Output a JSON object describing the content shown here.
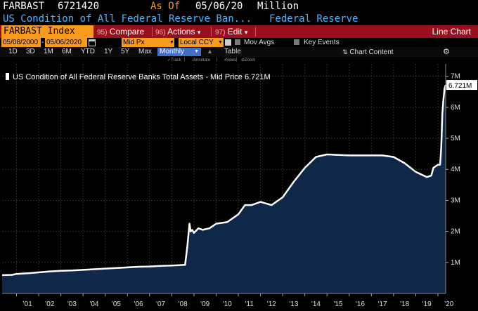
{
  "header": {
    "ticker": "FARBAST",
    "value": "6721420",
    "as_of_label": "As Of",
    "as_of_date": "05/06/20",
    "unit": "Million",
    "description": "US Condition of All Federal Reserve Ban...",
    "source": "Federal Reserve"
  },
  "toolbar": {
    "security": "FARBAST Index",
    "compare_num": "95)",
    "compare_label": "Compare",
    "actions_num": "96)",
    "actions_label": "Actions",
    "edit_num": "97)",
    "edit_label": "Edit",
    "dropdown_glyph": "▾",
    "chart_type": "Line Chart"
  },
  "options": {
    "start_date": "05/08/2000",
    "date_separator": "-",
    "end_date": "05/06/2020",
    "price_field": "Mid Px",
    "currency": "Local CCY",
    "mov_avgs_label": "Mov Avgs",
    "key_events_label": "Key Events"
  },
  "periods": {
    "items": [
      "1D",
      "3D",
      "1M",
      "6M",
      "YTD",
      "1Y",
      "5Y",
      "Max"
    ],
    "selected": "Monthly",
    "table_label": "Table",
    "chart_content_label": "Chart Content"
  },
  "tools": {
    "track": "Track",
    "annotate": "Annotate",
    "news": "News",
    "zoom": "Zoom"
  },
  "legend": {
    "label": "US Condition of All Federal Reserve Banks Total Assets - Mid Price",
    "last_value": "6.721M"
  },
  "colors": {
    "orange": "#f79a1e",
    "red_bar": "#9a0f1e",
    "blue_text": "#46b4ff",
    "area_fill": "#0f2748",
    "line": "#ffffff"
  },
  "chart_data": {
    "type": "area",
    "title": "",
    "xlabel": "",
    "ylabel": "",
    "xlim": [
      2000.35,
      2020.35
    ],
    "ylim": [
      0,
      7.4
    ],
    "y_unit": "M",
    "x_tick_labels": [
      "'01",
      "'02",
      "'03",
      "'04",
      "'05",
      "'06",
      "'07",
      "'08",
      "'09",
      "'10",
      "'11",
      "'12",
      "'13",
      "'14",
      "'15",
      "'16",
      "'17",
      "'18",
      "'19",
      "'20"
    ],
    "y_ticks": [
      1,
      2,
      3,
      4,
      5,
      6,
      7
    ],
    "y_tick_labels": [
      "1M",
      "2M",
      "3M",
      "4M",
      "5M",
      "6M",
      "7M"
    ],
    "last_value_label": "6.721M",
    "series": [
      {
        "name": "US Condition of All Federal Reserve Banks Total Assets - Mid Price",
        "x": [
          2000.35,
          2000.8,
          2001.0,
          2001.5,
          2002.0,
          2002.5,
          2003.0,
          2003.5,
          2004.0,
          2004.5,
          2005.0,
          2005.5,
          2006.0,
          2006.5,
          2007.0,
          2007.5,
          2008.0,
          2008.6,
          2008.7,
          2008.8,
          2008.85,
          2008.92,
          2009.0,
          2009.2,
          2009.4,
          2009.7,
          2010.0,
          2010.5,
          2011.0,
          2011.3,
          2011.6,
          2012.0,
          2012.5,
          2013.0,
          2013.5,
          2014.0,
          2014.5,
          2014.8,
          2015.0,
          2016.0,
          2017.0,
          2017.5,
          2018.0,
          2018.5,
          2019.0,
          2019.5,
          2019.7,
          2019.8,
          2020.0,
          2020.1,
          2020.15,
          2020.2,
          2020.25,
          2020.3,
          2020.35
        ],
        "values": [
          0.59,
          0.6,
          0.63,
          0.65,
          0.68,
          0.71,
          0.73,
          0.74,
          0.76,
          0.78,
          0.8,
          0.82,
          0.84,
          0.86,
          0.87,
          0.89,
          0.9,
          0.92,
          1.5,
          2.25,
          2.0,
          2.05,
          1.95,
          2.1,
          2.05,
          2.1,
          2.25,
          2.3,
          2.55,
          2.85,
          2.85,
          2.95,
          2.85,
          3.1,
          3.6,
          4.05,
          4.4,
          4.45,
          4.48,
          4.45,
          4.45,
          4.45,
          4.4,
          4.2,
          3.92,
          3.75,
          3.8,
          4.05,
          4.15,
          4.15,
          4.7,
          5.8,
          6.25,
          6.6,
          6.72
        ]
      }
    ]
  }
}
